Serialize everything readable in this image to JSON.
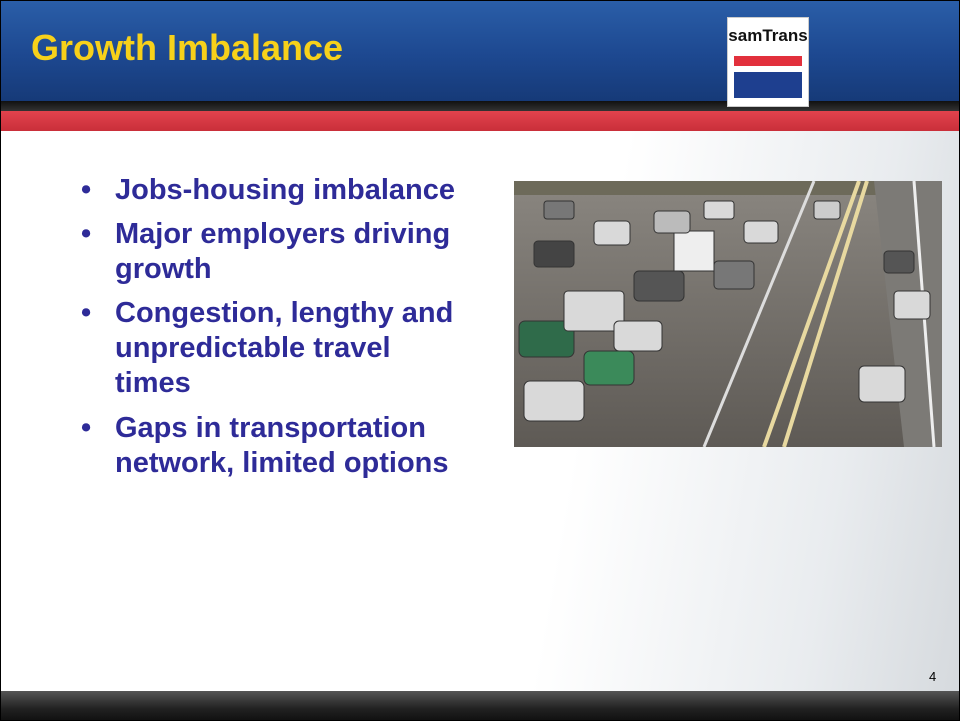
{
  "header": {
    "title": "Growth Imbalance",
    "logo": "samTrans"
  },
  "body": {
    "bullets": [
      "Jobs-housing imbalance",
      "Major employers driving growth",
      "Congestion, lengthy and unpredictable travel times",
      "Gaps in transportation network, limited options"
    ]
  },
  "footer": {
    "page_number": "4"
  }
}
